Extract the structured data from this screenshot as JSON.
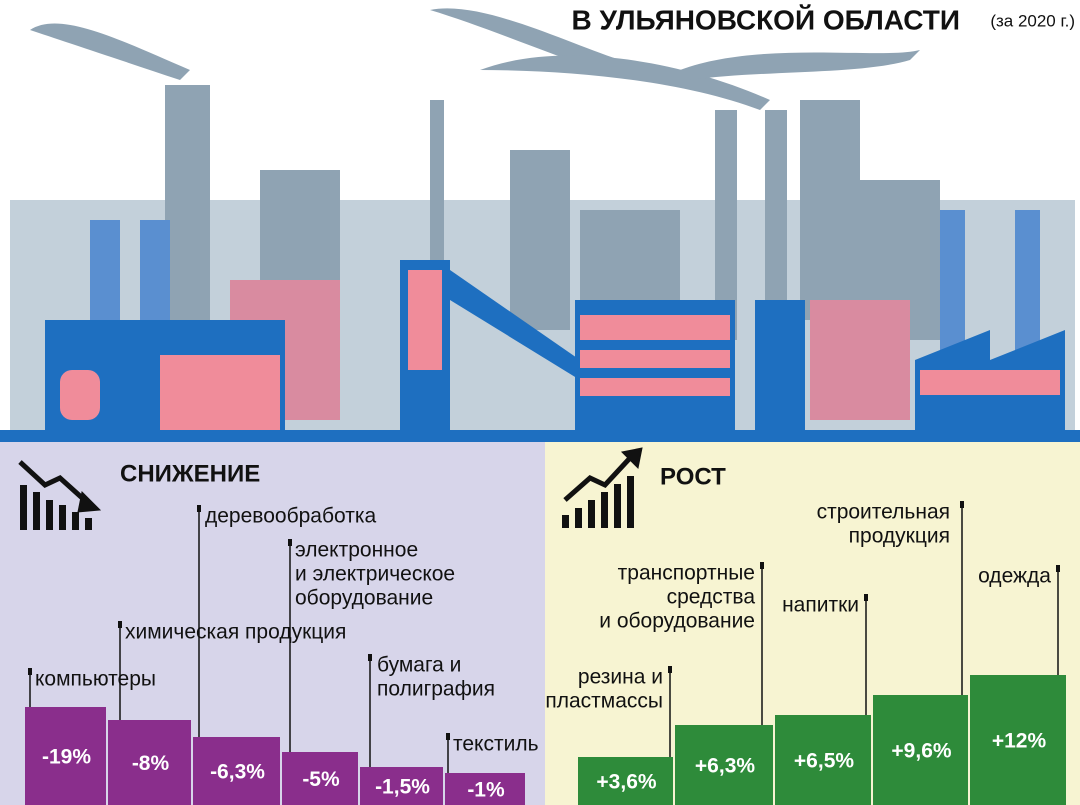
{
  "header": {
    "title": "В УЛЬЯНОВСКОЙ ОБЛАСТИ",
    "subtitle": "(за 2020 г.)"
  },
  "decline": {
    "title": "СНИЖЕНИЕ",
    "items": [
      {
        "label": [
          "компьютеры"
        ],
        "value": "-19%"
      },
      {
        "label": [
          "химическая продукция"
        ],
        "value": "-8%"
      },
      {
        "label": [
          "деревообработка"
        ],
        "value": "-6,3%"
      },
      {
        "label": [
          "электронное",
          "и электрическое",
          "оборудование"
        ],
        "value": "-5%"
      },
      {
        "label": [
          "бумага и",
          "полиграфия"
        ],
        "value": "-1,5%"
      },
      {
        "label": [
          "текстиль"
        ],
        "value": "-1%"
      }
    ]
  },
  "growth": {
    "title": "РОСТ",
    "items": [
      {
        "label": [
          "резина и",
          "пластмассы"
        ],
        "value": "+3,6%"
      },
      {
        "label": [
          "транспортные",
          "средства",
          "и оборудование"
        ],
        "value": "+6,3%"
      },
      {
        "label": [
          "напитки"
        ],
        "value": "+6,5%"
      },
      {
        "label": [
          "строительная",
          "продукция"
        ],
        "value": "+9,6%"
      },
      {
        "label": [
          "одежда"
        ],
        "value": "+12%"
      }
    ]
  }
}
